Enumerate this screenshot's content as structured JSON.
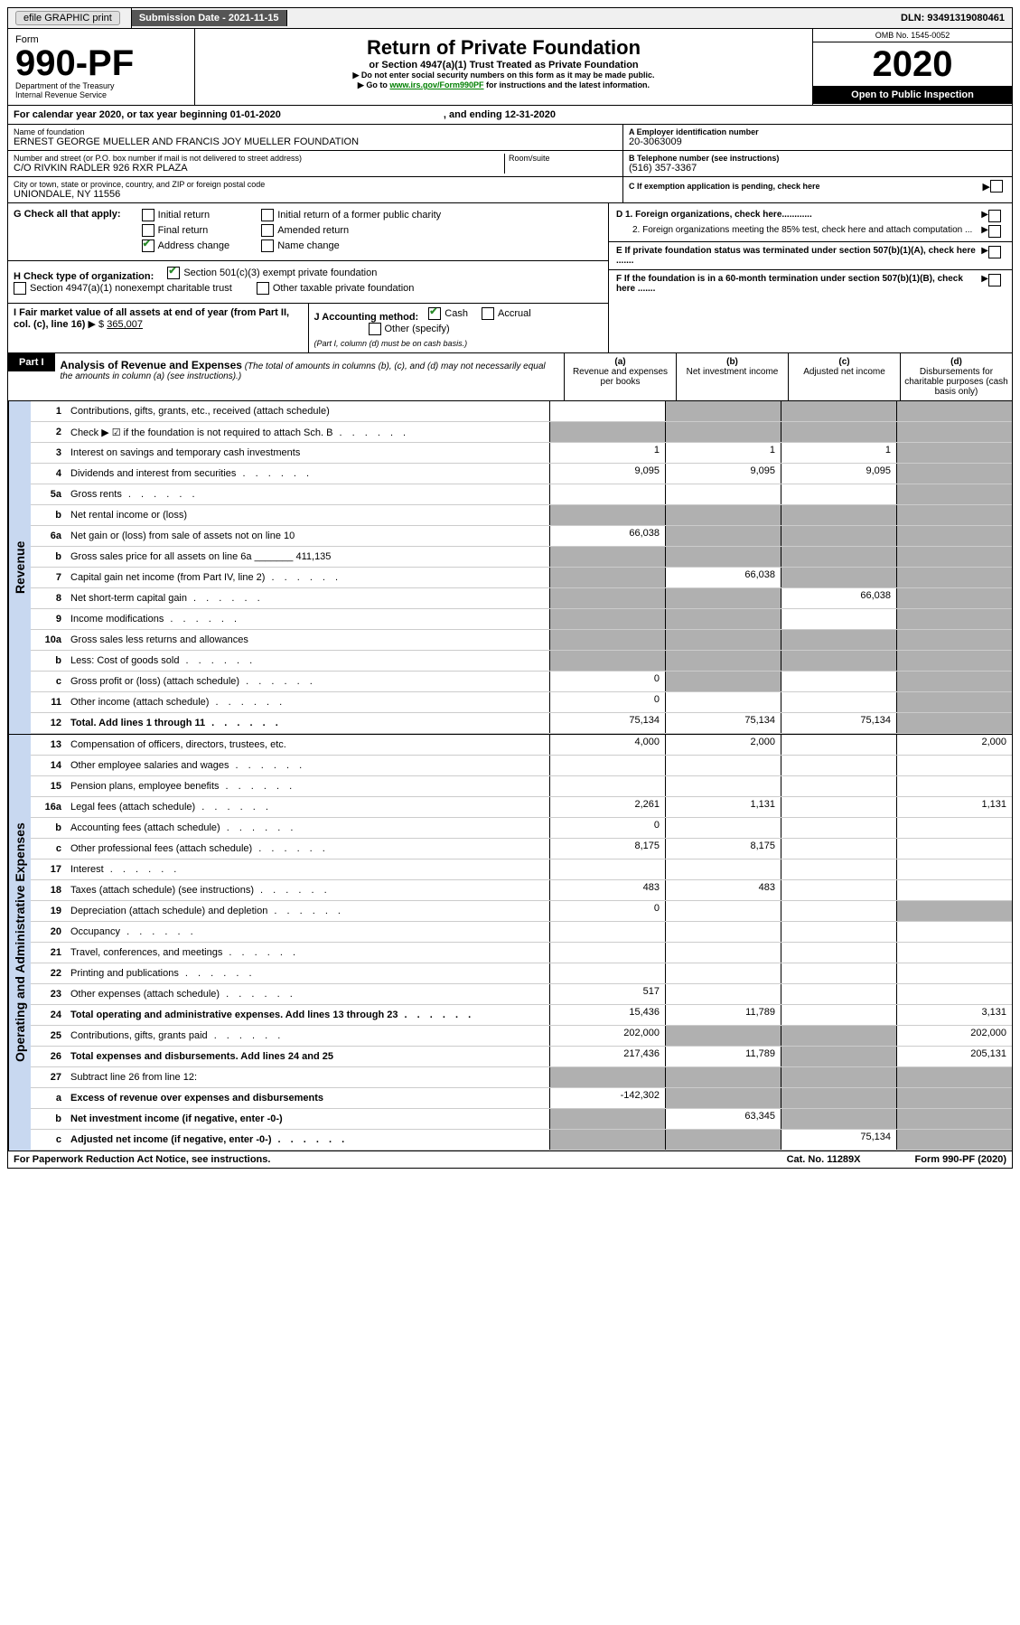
{
  "topbar": {
    "efile": "efile GRAPHIC print",
    "submission_label": "Submission Date - 2021-11-15",
    "dln": "DLN: 93491319080461"
  },
  "header": {
    "form_word": "Form",
    "form_no": "990-PF",
    "dept": "Department of the Treasury",
    "irs": "Internal Revenue Service",
    "title": "Return of Private Foundation",
    "subtitle": "or Section 4947(a)(1) Trust Treated as Private Foundation",
    "note1": "▶ Do not enter social security numbers on this form as it may be made public.",
    "note2_pre": "▶ Go to ",
    "note2_link": "www.irs.gov/Form990PF",
    "note2_post": " for instructions and the latest information.",
    "omb": "OMB No. 1545-0052",
    "year": "2020",
    "open": "Open to Public Inspection"
  },
  "cal": {
    "text": "For calendar year 2020, or tax year beginning 01-01-2020",
    "ending": ", and ending 12-31-2020"
  },
  "id": {
    "name_label": "Name of foundation",
    "name": "ERNEST GEORGE MUELLER AND FRANCIS JOY MUELLER FOUNDATION",
    "addr_label": "Number and street (or P.O. box number if mail is not delivered to street address)",
    "addr": "C/O RIVKIN RADLER 926 RXR PLAZA",
    "room_label": "Room/suite",
    "city_label": "City or town, state or province, country, and ZIP or foreign postal code",
    "city": "UNIONDALE, NY  11556",
    "ein_label": "A Employer identification number",
    "ein": "20-3063009",
    "tel_label": "B Telephone number (see instructions)",
    "tel": "(516) 357-3367",
    "exempt_label": "C If exemption application is pending, check here"
  },
  "G": {
    "label": "G Check all that apply:",
    "initial": "Initial return",
    "final": "Final return",
    "addr_change": "Address change",
    "initial_former": "Initial return of a former public charity",
    "amended": "Amended return",
    "name_change": "Name change"
  },
  "H": {
    "label": "H Check type of organization:",
    "c3": "Section 501(c)(3) exempt private foundation",
    "s4947": "Section 4947(a)(1) nonexempt charitable trust",
    "other_tax": "Other taxable private foundation"
  },
  "I": {
    "label": "I Fair market value of all assets at end of year (from Part II, col. (c), line 16)",
    "value": "365,007"
  },
  "J": {
    "label": "J Accounting method:",
    "cash": "Cash",
    "accrual": "Accrual",
    "other": "Other (specify)",
    "note": "(Part I, column (d) must be on cash basis.)"
  },
  "D": {
    "d1": "D 1. Foreign organizations, check here............",
    "d2": "2. Foreign organizations meeting the 85% test, check here and attach computation ...",
    "E": "E  If private foundation status was terminated under section 507(b)(1)(A), check here .......",
    "F": "F  If the foundation is in a 60-month termination under section 507(b)(1)(B), check here ......."
  },
  "partI": {
    "label": "Part I",
    "title": "Analysis of Revenue and Expenses",
    "note": "(The total of amounts in columns (b), (c), and (d) may not necessarily equal the amounts in column (a) (see instructions).)",
    "col_a": "(a)  Revenue and expenses per books",
    "col_b": "(b)  Net investment income",
    "col_c": "(c)  Adjusted net income",
    "col_d": "(d)  Disbursements for charitable purposes (cash basis only)"
  },
  "sides": {
    "rev": "Revenue",
    "exp": "Operating and Administrative Expenses"
  },
  "rows": [
    {
      "n": "1",
      "label": "Contributions, gifts, grants, etc., received (attach schedule)",
      "a": "",
      "b": "",
      "c": "",
      "d": "",
      "aS": false,
      "bS": true,
      "cS": true,
      "dS": true
    },
    {
      "n": "2",
      "label": "Check ▶ ☑ if the foundation is not required to attach Sch. B",
      "dots": true,
      "a": "",
      "b": "",
      "c": "",
      "d": "",
      "aS": true,
      "bS": true,
      "cS": true,
      "dS": true
    },
    {
      "n": "3",
      "label": "Interest on savings and temporary cash investments",
      "a": "1",
      "b": "1",
      "c": "1",
      "d": "",
      "dS": true
    },
    {
      "n": "4",
      "label": "Dividends and interest from securities",
      "dots": true,
      "a": "9,095",
      "b": "9,095",
      "c": "9,095",
      "d": "",
      "dS": true
    },
    {
      "n": "5a",
      "label": "Gross rents",
      "dots": true,
      "a": "",
      "b": "",
      "c": "",
      "d": "",
      "dS": true
    },
    {
      "n": "b",
      "label": "Net rental income or (loss)",
      "a": "",
      "b": "",
      "c": "",
      "d": "",
      "aS": true,
      "bS": true,
      "cS": true,
      "dS": true
    },
    {
      "n": "6a",
      "label": "Net gain or (loss) from sale of assets not on line 10",
      "a": "66,038",
      "b": "",
      "c": "",
      "d": "",
      "bS": true,
      "cS": true,
      "dS": true
    },
    {
      "n": "b",
      "label": "Gross sales price for all assets on line 6a _______ 411,135",
      "a": "",
      "b": "",
      "c": "",
      "d": "",
      "aS": true,
      "bS": true,
      "cS": true,
      "dS": true
    },
    {
      "n": "7",
      "label": "Capital gain net income (from Part IV, line 2)",
      "dots": true,
      "a": "",
      "b": "66,038",
      "c": "",
      "d": "",
      "aS": true,
      "cS": true,
      "dS": true
    },
    {
      "n": "8",
      "label": "Net short-term capital gain",
      "dots": true,
      "a": "",
      "b": "",
      "c": "66,038",
      "d": "",
      "aS": true,
      "bS": true,
      "dS": true
    },
    {
      "n": "9",
      "label": "Income modifications",
      "dots": true,
      "a": "",
      "b": "",
      "c": "",
      "d": "",
      "aS": true,
      "bS": true,
      "dS": true
    },
    {
      "n": "10a",
      "label": "Gross sales less returns and allowances",
      "a": "",
      "b": "",
      "c": "",
      "d": "",
      "aS": true,
      "bS": true,
      "cS": true,
      "dS": true
    },
    {
      "n": "b",
      "label": "Less: Cost of goods sold",
      "dots": true,
      "a": "",
      "b": "",
      "c": "",
      "d": "",
      "aS": true,
      "bS": true,
      "cS": true,
      "dS": true
    },
    {
      "n": "c",
      "label": "Gross profit or (loss) (attach schedule)",
      "dots": true,
      "a": "0",
      "b": "",
      "c": "",
      "d": "",
      "bS": true,
      "dS": true
    },
    {
      "n": "11",
      "label": "Other income (attach schedule)",
      "dots": true,
      "a": "0",
      "b": "",
      "c": "",
      "d": "",
      "dS": true
    },
    {
      "n": "12",
      "label": "Total. Add lines 1 through 11",
      "dots": true,
      "bold": true,
      "a": "75,134",
      "b": "75,134",
      "c": "75,134",
      "d": "",
      "dS": true
    }
  ],
  "exp_rows": [
    {
      "n": "13",
      "label": "Compensation of officers, directors, trustees, etc.",
      "a": "4,000",
      "b": "2,000",
      "c": "",
      "d": "2,000"
    },
    {
      "n": "14",
      "label": "Other employee salaries and wages",
      "dots": true,
      "a": "",
      "b": "",
      "c": "",
      "d": ""
    },
    {
      "n": "15",
      "label": "Pension plans, employee benefits",
      "dots": true,
      "a": "",
      "b": "",
      "c": "",
      "d": ""
    },
    {
      "n": "16a",
      "label": "Legal fees (attach schedule)",
      "dots": true,
      "a": "2,261",
      "b": "1,131",
      "c": "",
      "d": "1,131"
    },
    {
      "n": "b",
      "label": "Accounting fees (attach schedule)",
      "dots": true,
      "a": "0",
      "b": "",
      "c": "",
      "d": ""
    },
    {
      "n": "c",
      "label": "Other professional fees (attach schedule)",
      "dots": true,
      "a": "8,175",
      "b": "8,175",
      "c": "",
      "d": ""
    },
    {
      "n": "17",
      "label": "Interest",
      "dots": true,
      "a": "",
      "b": "",
      "c": "",
      "d": ""
    },
    {
      "n": "18",
      "label": "Taxes (attach schedule) (see instructions)",
      "dots": true,
      "a": "483",
      "b": "483",
      "c": "",
      "d": ""
    },
    {
      "n": "19",
      "label": "Depreciation (attach schedule) and depletion",
      "dots": true,
      "a": "0",
      "b": "",
      "c": "",
      "d": "",
      "dS": true
    },
    {
      "n": "20",
      "label": "Occupancy",
      "dots": true,
      "a": "",
      "b": "",
      "c": "",
      "d": ""
    },
    {
      "n": "21",
      "label": "Travel, conferences, and meetings",
      "dots": true,
      "a": "",
      "b": "",
      "c": "",
      "d": ""
    },
    {
      "n": "22",
      "label": "Printing and publications",
      "dots": true,
      "a": "",
      "b": "",
      "c": "",
      "d": ""
    },
    {
      "n": "23",
      "label": "Other expenses (attach schedule)",
      "dots": true,
      "a": "517",
      "b": "",
      "c": "",
      "d": ""
    },
    {
      "n": "24",
      "label": "Total operating and administrative expenses. Add lines 13 through 23",
      "dots": true,
      "bold": true,
      "a": "15,436",
      "b": "11,789",
      "c": "",
      "d": "3,131"
    },
    {
      "n": "25",
      "label": "Contributions, gifts, grants paid",
      "dots": true,
      "a": "202,000",
      "b": "",
      "c": "",
      "d": "202,000",
      "bS": true,
      "cS": true
    },
    {
      "n": "26",
      "label": "Total expenses and disbursements. Add lines 24 and 25",
      "bold": true,
      "a": "217,436",
      "b": "11,789",
      "c": "",
      "d": "205,131",
      "cS": true
    },
    {
      "n": "27",
      "label": "Subtract line 26 from line 12:",
      "a": "",
      "b": "",
      "c": "",
      "d": "",
      "aS": true,
      "bS": true,
      "cS": true,
      "dS": true
    },
    {
      "n": "a",
      "label": "Excess of revenue over expenses and disbursements",
      "bold": true,
      "a": "-142,302",
      "b": "",
      "c": "",
      "d": "",
      "bS": true,
      "cS": true,
      "dS": true
    },
    {
      "n": "b",
      "label": "Net investment income (if negative, enter -0-)",
      "bold": true,
      "a": "",
      "b": "63,345",
      "c": "",
      "d": "",
      "aS": true,
      "cS": true,
      "dS": true
    },
    {
      "n": "c",
      "label": "Adjusted net income (if negative, enter -0-)",
      "dots": true,
      "bold": true,
      "a": "",
      "b": "",
      "c": "75,134",
      "d": "",
      "aS": true,
      "bS": true,
      "dS": true
    }
  ],
  "footer": {
    "paperwork": "For Paperwork Reduction Act Notice, see instructions.",
    "cat": "Cat. No. 11289X",
    "form": "Form 990-PF (2020)"
  }
}
